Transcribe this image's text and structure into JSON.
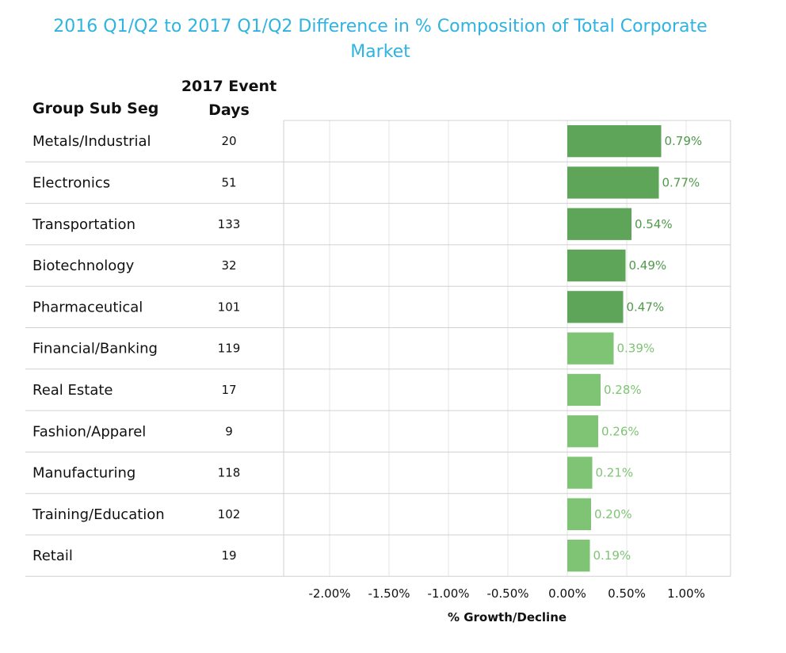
{
  "chart_data": {
    "type": "bar",
    "orientation": "horizontal",
    "title": "2016 Q1/Q2 to 2017 Q1/Q2 Difference in % Composition of Total Corporate Market",
    "row_header": "Group Sub Seg",
    "value_header": "2017 Event Days",
    "xlabel": "% Growth/Decline",
    "xlim": [
      -2.5,
      1.4
    ],
    "xticks": [
      -2.0,
      -1.5,
      -1.0,
      -0.5,
      0.0,
      0.5,
      1.0
    ],
    "xtick_labels": [
      "-2.00%",
      "-1.50%",
      "-1.00%",
      "-0.50%",
      "0.00%",
      "0.50%",
      "1.00%"
    ],
    "grid": true,
    "categories": [
      "Metals/Industrial",
      "Electronics",
      "Transportation",
      "Biotechnology",
      "Pharmaceutical",
      "Financial/Banking",
      "Real Estate",
      "Fashion/Apparel",
      "Manufacturing",
      "Training/Education",
      "Retail"
    ],
    "event_days": [
      "20",
      "51",
      "133",
      "32",
      "101",
      "119",
      "17",
      "9",
      "118",
      "102",
      "19"
    ],
    "values": [
      0.79,
      0.77,
      0.54,
      0.49,
      0.47,
      0.39,
      0.28,
      0.26,
      0.21,
      0.2,
      0.19
    ],
    "value_labels": [
      "0.79%",
      "0.77%",
      "0.54%",
      "0.49%",
      "0.47%",
      "0.39%",
      "0.28%",
      "0.26%",
      "0.21%",
      "0.20%",
      "0.19%"
    ],
    "bar_colors": [
      "#5ea55a",
      "#5ea55a",
      "#5ea55a",
      "#5ea55a",
      "#5ea55a",
      "#7ec474",
      "#7ec474",
      "#7ec474",
      "#7ec474",
      "#7ec474",
      "#7ec474"
    ],
    "label_colors": [
      "#4e9a4a",
      "#4e9a4a",
      "#4e9a4a",
      "#4e9a4a",
      "#4e9a4a",
      "#7ec474",
      "#7ec474",
      "#7ec474",
      "#7ec474",
      "#7ec474",
      "#7ec474"
    ]
  },
  "colors": {
    "title": "#2fb3e0",
    "grid": "#e6e6e6",
    "rule": "#d0d0d0"
  }
}
